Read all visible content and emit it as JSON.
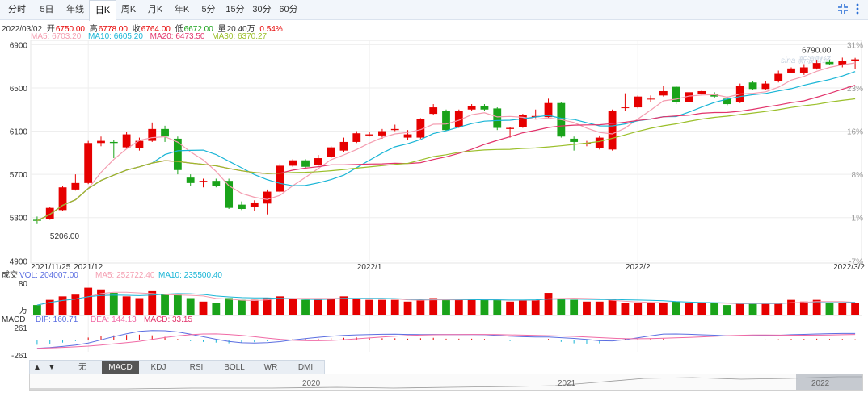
{
  "toolbar": {
    "tabs": [
      "分时",
      "5日",
      "年线",
      "日K",
      "周K",
      "月K",
      "年K",
      "5分",
      "15分",
      "30分",
      "60分"
    ],
    "active": "日K",
    "icons": [
      "collapse-icon",
      "more-vert-icon"
    ]
  },
  "ohlc": {
    "date": "2022/03/02",
    "open_label": "开",
    "open": "6750.00",
    "high_label": "高",
    "high": "6778.00",
    "close_label": "收",
    "close": "6764.00",
    "low_label": "低",
    "low": "6672.00",
    "vol_label": "量",
    "vol": "20.40万",
    "change": "0.54%"
  },
  "ma_legend": {
    "ma5": "MA5: 6703.20",
    "ma10": "MA10: 6605.20",
    "ma20": "MA20: 6473.50",
    "ma30": "MA30: 6370.27"
  },
  "volume_legend": {
    "title": "成交",
    "vol": "VOL: 204007.00",
    "ma5": "MA5: 252722.40",
    "ma10": "MA10: 235500.40",
    "top_tick": "80",
    "unit": "万"
  },
  "macd_legend": {
    "title": "MACD",
    "dif": "DIF: 160.71",
    "dea": "DEA: 144.13",
    "macd": "MACD: 33.15",
    "top_tick": "261",
    "bottom_tick": "-261"
  },
  "indicator_tabs": [
    "无",
    "MACD",
    "KDJ",
    "RSI",
    "BOLL",
    "WR",
    "DMI"
  ],
  "indicator_active": "MACD",
  "indicator_arrows": [
    "▲",
    "▼"
  ],
  "navigator": {
    "labels": [
      "2020",
      "2021",
      "2022"
    ]
  },
  "colors": {
    "up": "#e60000",
    "down": "#1aa31a",
    "ma5": "#f49db0",
    "ma10": "#19b5d6",
    "ma20": "#e2336b",
    "ma30": "#9bbf2a",
    "dif": "#5b6ee1",
    "dea": "#f06aa5",
    "grid": "#eeeeee"
  },
  "chart_data": {
    "type": "candlestick",
    "price_axis": {
      "ticks": [
        "6900",
        "6500",
        "6100",
        "5700",
        "5300",
        "4900"
      ],
      "range": [
        4880,
        6940
      ]
    },
    "pct_axis": {
      "ticks": [
        "31%",
        "23%",
        "16%",
        "8%",
        "1%",
        "-7%"
      ]
    },
    "x_labels": [
      "2021/11/25",
      "2021/12",
      "2022/1",
      "2022/2",
      "2022/3/2"
    ],
    "annotations": {
      "max": "6790.00",
      "min": "5206.00",
      "watermark": "sina 新浪财经"
    },
    "candles": [
      [
        5280,
        5270,
        5310,
        5240
      ],
      [
        5290,
        5390,
        5400,
        5280
      ],
      [
        5370,
        5580,
        5590,
        5360
      ],
      [
        5560,
        5620,
        5700,
        5550
      ],
      [
        5620,
        5990,
        6010,
        5610
      ],
      [
        5990,
        6010,
        6050,
        5960
      ],
      [
        6000,
        5990,
        6020,
        5850
      ],
      [
        5950,
        6070,
        6090,
        5940
      ],
      [
        5940,
        6010,
        6040,
        5920
      ],
      [
        6010,
        6120,
        6180,
        6000
      ],
      [
        6120,
        6050,
        6150,
        6000
      ],
      [
        6030,
        5740,
        6050,
        5700
      ],
      [
        5670,
        5620,
        5700,
        5590
      ],
      [
        5630,
        5640,
        5660,
        5580
      ],
      [
        5640,
        5590,
        5660,
        5580
      ],
      [
        5640,
        5390,
        5660,
        5380
      ],
      [
        5420,
        5380,
        5450,
        5370
      ],
      [
        5400,
        5440,
        5460,
        5360
      ],
      [
        5430,
        5540,
        5560,
        5330
      ],
      [
        5540,
        5780,
        5800,
        5530
      ],
      [
        5780,
        5830,
        5840,
        5770
      ],
      [
        5830,
        5770,
        5840,
        5750
      ],
      [
        5790,
        5850,
        5880,
        5780
      ],
      [
        5860,
        5950,
        5960,
        5850
      ],
      [
        5920,
        6000,
        6040,
        5910
      ],
      [
        6000,
        6080,
        6100,
        5990
      ],
      [
        6060,
        6070,
        6090,
        6050
      ],
      [
        6060,
        6100,
        6120,
        6030
      ],
      [
        6110,
        6120,
        6160,
        6100
      ],
      [
        6040,
        6070,
        6110,
        6020
      ],
      [
        6040,
        6210,
        6220,
        6030
      ],
      [
        6260,
        6320,
        6350,
        6250
      ],
      [
        6290,
        6110,
        6300,
        6100
      ],
      [
        6140,
        6290,
        6300,
        6130
      ],
      [
        6300,
        6330,
        6350,
        6290
      ],
      [
        6330,
        6300,
        6350,
        6290
      ],
      [
        6310,
        6130,
        6320,
        6110
      ],
      [
        6120,
        6130,
        6140,
        6040
      ],
      [
        6140,
        6250,
        6260,
        6130
      ],
      [
        6230,
        6240,
        6300,
        6220
      ],
      [
        6230,
        6360,
        6400,
        6220
      ],
      [
        6360,
        6050,
        6370,
        6040
      ],
      [
        6030,
        6000,
        6050,
        5920
      ],
      [
        5990,
        5990,
        6010,
        5960
      ],
      [
        5940,
        6040,
        6060,
        5930
      ],
      [
        5930,
        6290,
        6300,
        5920
      ],
      [
        6320,
        6320,
        6450,
        6290
      ],
      [
        6320,
        6420,
        6430,
        6310
      ],
      [
        6400,
        6400,
        6430,
        6370
      ],
      [
        6430,
        6470,
        6520,
        6420
      ],
      [
        6510,
        6370,
        6520,
        6350
      ],
      [
        6370,
        6460,
        6490,
        6350
      ],
      [
        6440,
        6470,
        6480,
        6430
      ],
      [
        6440,
        6420,
        6460,
        6410
      ],
      [
        6400,
        6350,
        6420,
        6340
      ],
      [
        6370,
        6520,
        6540,
        6360
      ],
      [
        6550,
        6490,
        6560,
        6480
      ],
      [
        6490,
        6540,
        6560,
        6480
      ],
      [
        6560,
        6630,
        6660,
        6550
      ],
      [
        6640,
        6680,
        6690,
        6640
      ],
      [
        6640,
        6690,
        6720,
        6620
      ],
      [
        6680,
        6730,
        6760,
        6670
      ],
      [
        6740,
        6720,
        6760,
        6710
      ],
      [
        6710,
        6750,
        6780,
        6690
      ],
      [
        6750,
        6764,
        6778,
        6672
      ]
    ],
    "volume_ratio": [
      0.3,
      0.45,
      0.55,
      0.6,
      0.8,
      0.75,
      0.65,
      0.55,
      0.5,
      0.7,
      0.6,
      0.6,
      0.5,
      0.4,
      0.35,
      0.5,
      0.45,
      0.45,
      0.5,
      0.55,
      0.5,
      0.45,
      0.45,
      0.5,
      0.55,
      0.5,
      0.45,
      0.45,
      0.45,
      0.4,
      0.45,
      0.5,
      0.45,
      0.45,
      0.45,
      0.45,
      0.45,
      0.4,
      0.45,
      0.45,
      0.65,
      0.5,
      0.45,
      0.4,
      0.4,
      0.45,
      0.35,
      0.35,
      0.35,
      0.35,
      0.4,
      0.35,
      0.35,
      0.35,
      0.3,
      0.35,
      0.35,
      0.35,
      0.35,
      0.45,
      0.4,
      0.45,
      0.35,
      0.35,
      0.35
    ],
    "macd_ratio": [
      -0.3,
      -0.25,
      -0.15,
      -0.05,
      0.2,
      0.3,
      0.35,
      0.38,
      0.4,
      0.35,
      0.25,
      0.1,
      -0.05,
      -0.1,
      -0.15,
      -0.2,
      -0.15,
      -0.12,
      -0.05,
      0.05,
      0.1,
      0.1,
      0.12,
      0.15,
      0.18,
      0.2,
      0.15,
      0.15,
      0.15,
      0.12,
      0.15,
      0.18,
      0.12,
      0.12,
      0.12,
      0.1,
      0.05,
      -0.05,
      0.0,
      0.05,
      0.1,
      -0.1,
      -0.2,
      -0.22,
      -0.2,
      0.05,
      0.12,
      0.15,
      0.15,
      0.12,
      0.05,
      0.05,
      0.05,
      0.05,
      0.0,
      0.05,
      0.05,
      0.06,
      0.08,
      0.1,
      0.1,
      0.12,
      0.1,
      0.1,
      0.08
    ]
  }
}
